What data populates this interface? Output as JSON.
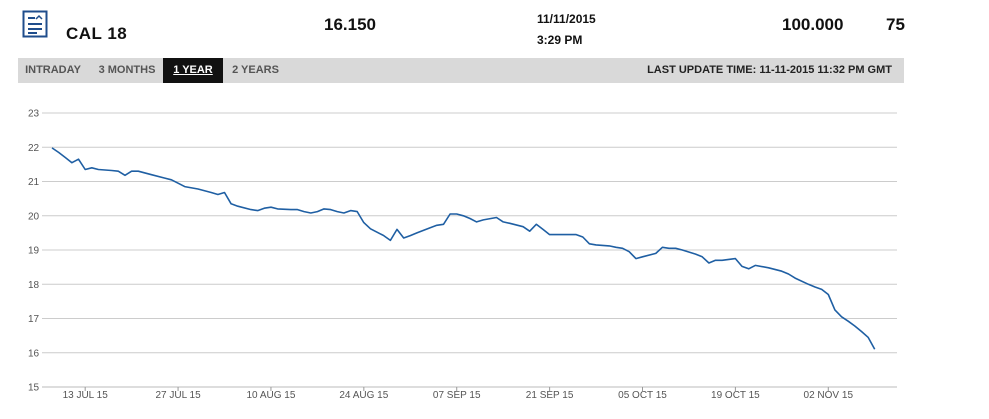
{
  "header": {
    "icon": "document-list-icon",
    "symbol": "CAL 18",
    "price": "16.150",
    "date": "11/11/2015",
    "time": "3:29 PM",
    "volume": "100.000",
    "count": "75"
  },
  "tabs": [
    {
      "label": "INTRADAY",
      "active": false
    },
    {
      "label": "3 MONTHS",
      "active": false
    },
    {
      "label": "1 YEAR",
      "active": true
    },
    {
      "label": "2 YEARS",
      "active": false
    }
  ],
  "last_update": "LAST UPDATE TIME: 11-11-2015 11:32 PM GMT",
  "colors": {
    "line": "#1f5fa3",
    "grid": "#cccccc",
    "tabbar": "#d9d9d9",
    "active_tab": "#111111"
  },
  "chart_data": {
    "type": "line",
    "y_ticks": [
      15,
      16,
      17,
      18,
      19,
      20,
      21,
      22,
      23
    ],
    "ylim": [
      15,
      23
    ],
    "x_tick_labels": [
      "13 JUL 15",
      "27 JUL 15",
      "10 AUG 15",
      "24 AUG 15",
      "07 SEP 15",
      "21 SEP 15",
      "05 OCT 15",
      "19 OCT 15",
      "02 NOV 15"
    ],
    "x_tick_dates": [
      "2015-07-13",
      "2015-07-27",
      "2015-08-10",
      "2015-08-24",
      "2015-09-07",
      "2015-09-21",
      "2015-10-05",
      "2015-10-19",
      "2015-11-02"
    ],
    "xlim": [
      "2015-07-08",
      "2015-11-11"
    ],
    "grid": true,
    "series": [
      {
        "points": [
          [
            "2015-07-08",
            21.98
          ],
          [
            "2015-07-09",
            21.85
          ],
          [
            "2015-07-10",
            21.7
          ],
          [
            "2015-07-11",
            21.55
          ],
          [
            "2015-07-12",
            21.65
          ],
          [
            "2015-07-13",
            21.35
          ],
          [
            "2015-07-14",
            21.4
          ],
          [
            "2015-07-15",
            21.35
          ],
          [
            "2015-07-17",
            21.32
          ],
          [
            "2015-07-18",
            21.3
          ],
          [
            "2015-07-19",
            21.18
          ],
          [
            "2015-07-20",
            21.3
          ],
          [
            "2015-07-21",
            21.3
          ],
          [
            "2015-07-23",
            21.2
          ],
          [
            "2015-07-25",
            21.1
          ],
          [
            "2015-07-26",
            21.05
          ],
          [
            "2015-07-27",
            20.95
          ],
          [
            "2015-07-28",
            20.85
          ],
          [
            "2015-07-30",
            20.78
          ],
          [
            "2015-08-01",
            20.68
          ],
          [
            "2015-08-02",
            20.62
          ],
          [
            "2015-08-03",
            20.68
          ],
          [
            "2015-08-04",
            20.35
          ],
          [
            "2015-08-05",
            20.28
          ],
          [
            "2015-08-07",
            20.18
          ],
          [
            "2015-08-08",
            20.15
          ],
          [
            "2015-08-09",
            20.22
          ],
          [
            "2015-08-10",
            20.25
          ],
          [
            "2015-08-11",
            20.2
          ],
          [
            "2015-08-13",
            20.18
          ],
          [
            "2015-08-14",
            20.18
          ],
          [
            "2015-08-15",
            20.12
          ],
          [
            "2015-08-16",
            20.08
          ],
          [
            "2015-08-17",
            20.12
          ],
          [
            "2015-08-18",
            20.2
          ],
          [
            "2015-08-19",
            20.18
          ],
          [
            "2015-08-20",
            20.12
          ],
          [
            "2015-08-21",
            20.08
          ],
          [
            "2015-08-22",
            20.15
          ],
          [
            "2015-08-23",
            20.12
          ],
          [
            "2015-08-24",
            19.8
          ],
          [
            "2015-08-25",
            19.62
          ],
          [
            "2015-08-27",
            19.42
          ],
          [
            "2015-08-28",
            19.28
          ],
          [
            "2015-08-29",
            19.6
          ],
          [
            "2015-08-30",
            19.35
          ],
          [
            "2015-08-31",
            19.42
          ],
          [
            "2015-09-01",
            19.5
          ],
          [
            "2015-09-03",
            19.65
          ],
          [
            "2015-09-04",
            19.72
          ],
          [
            "2015-09-05",
            19.75
          ],
          [
            "2015-09-06",
            20.05
          ],
          [
            "2015-09-07",
            20.05
          ],
          [
            "2015-09-08",
            20.0
          ],
          [
            "2015-09-09",
            19.92
          ],
          [
            "2015-09-10",
            19.82
          ],
          [
            "2015-09-11",
            19.88
          ],
          [
            "2015-09-13",
            19.95
          ],
          [
            "2015-09-14",
            19.82
          ],
          [
            "2015-09-15",
            19.78
          ],
          [
            "2015-09-17",
            19.68
          ],
          [
            "2015-09-18",
            19.55
          ],
          [
            "2015-09-19",
            19.75
          ],
          [
            "2015-09-20",
            19.6
          ],
          [
            "2015-09-21",
            19.45
          ],
          [
            "2015-09-22",
            19.45
          ],
          [
            "2015-09-24",
            19.45
          ],
          [
            "2015-09-25",
            19.45
          ],
          [
            "2015-09-26",
            19.38
          ],
          [
            "2015-09-27",
            19.18
          ],
          [
            "2015-09-28",
            19.15
          ],
          [
            "2015-09-30",
            19.12
          ],
          [
            "2015-10-01",
            19.08
          ],
          [
            "2015-10-02",
            19.05
          ],
          [
            "2015-10-03",
            18.95
          ],
          [
            "2015-10-04",
            18.75
          ],
          [
            "2015-10-05",
            18.8
          ],
          [
            "2015-10-07",
            18.9
          ],
          [
            "2015-10-08",
            19.08
          ],
          [
            "2015-10-09",
            19.05
          ],
          [
            "2015-10-10",
            19.05
          ],
          [
            "2015-10-11",
            19.0
          ],
          [
            "2015-10-13",
            18.88
          ],
          [
            "2015-10-14",
            18.8
          ],
          [
            "2015-10-15",
            18.62
          ],
          [
            "2015-10-16",
            18.7
          ],
          [
            "2015-10-17",
            18.7
          ],
          [
            "2015-10-19",
            18.75
          ],
          [
            "2015-10-20",
            18.52
          ],
          [
            "2015-10-21",
            18.45
          ],
          [
            "2015-10-22",
            18.55
          ],
          [
            "2015-10-24",
            18.48
          ],
          [
            "2015-10-26",
            18.38
          ],
          [
            "2015-10-27",
            18.3
          ],
          [
            "2015-10-28",
            18.18
          ],
          [
            "2015-10-30",
            18.0
          ],
          [
            "2015-10-31",
            17.92
          ],
          [
            "2015-11-01",
            17.85
          ],
          [
            "2015-11-02",
            17.7
          ],
          [
            "2015-11-03",
            17.25
          ],
          [
            "2015-11-04",
            17.05
          ],
          [
            "2015-11-05",
            16.92
          ],
          [
            "2015-11-06",
            16.78
          ],
          [
            "2015-11-07",
            16.62
          ],
          [
            "2015-11-08",
            16.45
          ],
          [
            "2015-11-09",
            16.1
          ]
        ]
      }
    ]
  }
}
